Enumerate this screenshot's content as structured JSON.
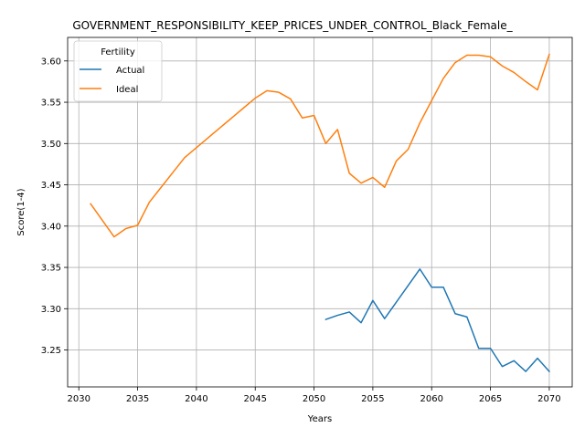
{
  "chart_data": {
    "type": "line",
    "title": "GOVERNMENT_RESPONSIBILITY_KEEP_PRICES_UNDER_CONTROL_Black_Female_",
    "xlabel": "Years",
    "ylabel": "Score(1-4)",
    "xlim": [
      2029.05,
      2071.95
    ],
    "ylim": [
      3.2053,
      3.6285
    ],
    "xticks": [
      2030,
      2035,
      2040,
      2045,
      2050,
      2055,
      2060,
      2065,
      2070
    ],
    "xtick_labels": [
      "2030",
      "2035",
      "2040",
      "2045",
      "2050",
      "2055",
      "2060",
      "2065",
      "2070"
    ],
    "yticks": [
      3.25,
      3.3,
      3.35,
      3.4,
      3.45,
      3.5,
      3.55,
      3.6
    ],
    "ytick_labels": [
      "3.25",
      "3.30",
      "3.35",
      "3.40",
      "3.45",
      "3.50",
      "3.55",
      "3.60"
    ],
    "grid": true,
    "legend": {
      "title": "Fertility",
      "placement": "top-left"
    },
    "series": [
      {
        "name": "Actual",
        "color": "#1f77b4",
        "x": [
          2051,
          2052,
          2053,
          2054,
          2055,
          2056,
          2057,
          2058,
          2059,
          2060,
          2061,
          2062,
          2063,
          2064,
          2065,
          2066,
          2067,
          2068,
          2069,
          2070
        ],
        "y": [
          3.287,
          3.292,
          3.296,
          3.283,
          3.31,
          3.288,
          3.308,
          3.328,
          3.348,
          3.326,
          3.326,
          3.294,
          3.29,
          3.252,
          3.252,
          3.23,
          3.237,
          3.224,
          3.24,
          3.224
        ]
      },
      {
        "name": "Ideal",
        "color": "#ff7f0e",
        "x": [
          2031,
          2032,
          2033,
          2034,
          2035,
          2036,
          2037,
          2038,
          2039,
          2040,
          2041,
          2042,
          2043,
          2044,
          2045,
          2046,
          2047,
          2048,
          2049,
          2050,
          2051,
          2052,
          2053,
          2054,
          2055,
          2056,
          2057,
          2058,
          2059,
          2060,
          2061,
          2062,
          2063,
          2064,
          2065,
          2066,
          2067,
          2068,
          2069,
          2070
        ],
        "y": [
          3.427,
          3.407,
          3.387,
          3.397,
          3.401,
          3.429,
          3.447,
          3.465,
          3.483,
          3.495,
          3.507,
          3.519,
          3.531,
          3.543,
          3.555,
          3.564,
          3.562,
          3.554,
          3.531,
          3.534,
          3.5,
          3.517,
          3.464,
          3.452,
          3.459,
          3.447,
          3.479,
          3.493,
          3.525,
          3.552,
          3.579,
          3.598,
          3.607,
          3.607,
          3.605,
          3.594,
          3.586,
          3.575,
          3.565,
          3.608
        ]
      }
    ]
  }
}
